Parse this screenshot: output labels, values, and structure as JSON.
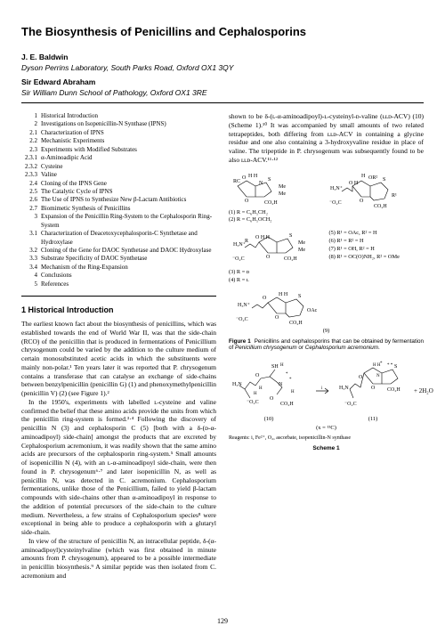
{
  "title": "The Biosynthesis of Penicillins and Cephalosporins",
  "author1": "J. E. Baldwin",
  "affil1": "Dyson Perrins Laboratory, South Parks Road, Oxford OX1 3QY",
  "author2": "Sir Edward Abraham",
  "affil2": "Sir William Dunn School of Pathology, Oxford OX1 3RE",
  "toc": [
    {
      "n": "1",
      "t": "Historical Introduction"
    },
    {
      "n": "2",
      "t": "Investigations on Isopenicillin-N Synthase (IPNS)"
    },
    {
      "n": "2.1",
      "t": "Characterization of IPNS"
    },
    {
      "n": "2.2",
      "t": "Mechanistic Experiments"
    },
    {
      "n": "2.3",
      "t": "Experiments with Modified Substrates"
    },
    {
      "n": "2.3.1",
      "t": "α-Aminoadipic Acid"
    },
    {
      "n": "2.3.2",
      "t": "Cysteine"
    },
    {
      "n": "2.3.3",
      "t": "Valine"
    },
    {
      "n": "2.4",
      "t": "Cloning of the IPNS Gene"
    },
    {
      "n": "2.5",
      "t": "The Catalytic Cycle of IPNS"
    },
    {
      "n": "2.6",
      "t": "The Use of IPNS to Synthesize New β-Lactam Antibiotics"
    },
    {
      "n": "2.7",
      "t": "Biomimetic Synthesis of Penicillins"
    },
    {
      "n": "3",
      "t": "Expansion of the Penicillin Ring-System to the Cephalosporin Ring-System"
    },
    {
      "n": "3.1",
      "t": "Characterization of Deacetoxycephalosporin-C Synthetase and Hydroxylase"
    },
    {
      "n": "3.2",
      "t": "Cloning of the Gene for DAOC Synthetase and DAOC Hydroxylase"
    },
    {
      "n": "3.3",
      "t": "Substrate Specificity of DAOC Synthetase"
    },
    {
      "n": "3.4",
      "t": "Mechanism of the Ring-Expansion"
    },
    {
      "n": "4",
      "t": "Conclusions"
    },
    {
      "n": "5",
      "t": "References"
    }
  ],
  "section1_head": "1 Historical Introduction",
  "para1": "The earliest known fact about the biosynthesis of penicillins, which was established towards the end of World War II, was that the side-chain (RCO) of the penicillin that is produced in fermentations of Penicillium chrysogenum could be varied by the addition to the culture medium of certain monosubstituted acetic acids in which the substituents were mainly non-polar.¹ Ten years later it was reported that P. chrysogenum contains a transferase that can catalyse an exchange of side-chains between benzylpenicillin (penicillin G) (1) and phenoxymethylpenicillin (penicillin V) (2) (see Figure 1).²",
  "para2": "In the 1950's, experiments with labelled ʟ-cysteine and valine confirmed the belief that these amino acids provide the units from which the penicillin ring-system is formed.³·⁴ Following the discovery of penicillin N (3) and cephalosporin C (5) [both with a δ-(ᴅ-α-aminoadipoyl) side-chain] amongst the products that are excreted by Cephalosporium acremonium, it was readily shown that the same amino acids are precursors of the cephalosporin ring-system.⁵ Small amounts of isopenicillin N (4), with an ʟ-α-aminoadipoyl side-chain, were then found in P. chrysogenum⁶·⁷ and later isopenicillin N, as well as penicillin N, was detected in C. acremonium. Cephalosporium fermentations, unlike those of the Penicillium, failed to yield β-lactam compounds with side-chains other than α-aminoadipoyl in response to the addition of potential precursors of the side-chain to the culture medium. Nevertheless, a few strains of Cephalosporium species⁸ were exceptional in being able to produce a cephalosporin with a glutaryl side-chain.",
  "para3": "In view of the structure of penicillin N, an intracellular peptide, δ-(α-aminoadipoyl)cysteinylvaline (which was first obtained in minute amounts from P. chrysogenum), appeared to be a possible intermediate in penicillin biosynthesis.⁹ A similar peptide was then isolated from C. acremonium and",
  "col2_top": "shown to be δ-(ʟ-α-aminoadipoyl)-ʟ-cysteinyl-ᴅ-valine (ʟʟᴅ-ACV) (10) (Scheme 1).¹⁰ It was accompanied by small amounts of two related tetrapeptides, both differing from ʟʟᴅ-ACV in containing a glycine residue and one also containing a 3-hydroxyvaline residue in place of valine. The tripeptide in P. chrysogenum was subsequently found to be also ʟʟᴅ-ACV.¹¹·¹²",
  "r_labels_left1": "(1)  R = C₆H₅CH₂",
  "r_labels_left2": "(2)  R = C₆H₅OCH₂",
  "r_labels_right1": "(5)  R¹ = OAc, R² = H",
  "r_labels_right2": "(6)  R¹ = R² = H",
  "r_labels_right3": "(7)  R¹ = OH, R² = H",
  "r_labels_right4": "(8)  R¹ = OC(O)NH₂, R² = OMe",
  "r_labels_34": "(3)  R = ᴅ",
  "r_labels_34b": "(4)  R = ʟ",
  "label9": "(9)",
  "fig1_caption": "Figure 1  Penicillins and cephalosporins that can be obtained by fermentation of Penicillium chrysogenum or Cephalosporium acremonium.",
  "label10": "(10)",
  "label11": "(11)",
  "iso_label": "(x = ¹³C)",
  "reagents": "Reagents: i, Fe²⁺, O₂, ascorbate, isopenicillin-N synthase",
  "scheme1": "Scheme 1",
  "water": "+    2H₂O",
  "pagenum": "129",
  "style": {
    "bg": "#ffffff",
    "text": "#000000",
    "title_fontsize": 13,
    "body_fontsize": 7.5,
    "toc_fontsize": 7,
    "caption_fontsize": 6.3
  }
}
